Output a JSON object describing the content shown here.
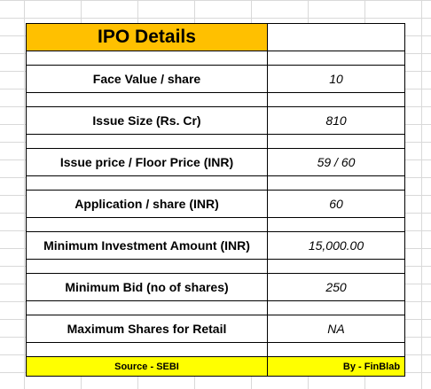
{
  "ipo": {
    "title": "IPO Details",
    "rows": [
      {
        "label": "Face Value / share",
        "value": "10"
      },
      {
        "label": "Issue Size (Rs. Cr)",
        "value": "810"
      },
      {
        "label": "Issue price / Floor Price (INR)",
        "value": "59 / 60"
      },
      {
        "label": "Application / share (INR)",
        "value": "60"
      },
      {
        "label": "Minimum Investment Amount (INR)",
        "value": "15,000.00"
      },
      {
        "label": "Minimum Bid (no of shares)",
        "value": "250"
      },
      {
        "label": "Maximum Shares for Retail",
        "value": "NA"
      }
    ],
    "footer": {
      "source": "Source - SEBI",
      "credit": "By - FinBlab"
    }
  },
  "colors": {
    "title_bg": "#ffc000",
    "footer_bg": "#ffff00",
    "grid": "#d9d9d9"
  }
}
